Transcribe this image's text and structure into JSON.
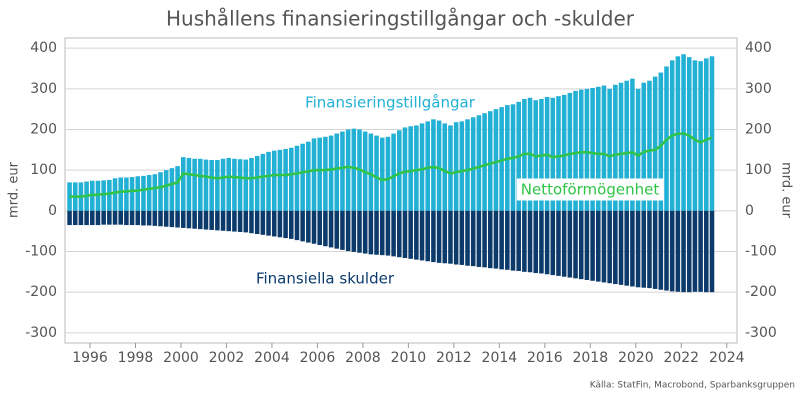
{
  "chart_data": {
    "type": "bar",
    "title": "Hushållens finansieringstillgångar och -skulder",
    "ylabel": "mrd. eur",
    "source": "Källa: StatFin, Macrobond, Sparbanksgruppen",
    "annotations": [
      "Finansieringstillgångar",
      "Nettoförmögenhet",
      "Finansiella skulder"
    ],
    "xlim": [
      1994.9,
      2024.45
    ],
    "xticks": [
      1996,
      1998,
      2000,
      2002,
      2004,
      2006,
      2008,
      2010,
      2012,
      2014,
      2016,
      2018,
      2020,
      2022,
      2024
    ],
    "ylim": [
      -325,
      425
    ],
    "yticks": [
      {
        "value": -300,
        "label": "-300"
      },
      {
        "value": -200,
        "label": "-200"
      },
      {
        "value": -100,
        "label": "-100"
      },
      0,
      100,
      200,
      300,
      400
    ],
    "grid": true,
    "x": [
      1995,
      1995.25,
      1995.5,
      1995.75,
      1996,
      1996.25,
      1996.5,
      1996.75,
      1997,
      1997.25,
      1997.5,
      1997.75,
      1998,
      1998.25,
      1998.5,
      1998.75,
      1999,
      1999.25,
      1999.5,
      1999.75,
      2000,
      2000.25,
      2000.5,
      2000.75,
      2001,
      2001.25,
      2001.5,
      2001.75,
      2002,
      2002.25,
      2002.5,
      2002.75,
      2003,
      2003.25,
      2003.5,
      2003.75,
      2004,
      2004.25,
      2004.5,
      2004.75,
      2005,
      2005.25,
      2005.5,
      2005.75,
      2006,
      2006.25,
      2006.5,
      2006.75,
      2007,
      2007.25,
      2007.5,
      2007.75,
      2008,
      2008.25,
      2008.5,
      2008.75,
      2009,
      2009.25,
      2009.5,
      2009.75,
      2010,
      2010.25,
      2010.5,
      2010.75,
      2011,
      2011.25,
      2011.5,
      2011.75,
      2012,
      2012.25,
      2012.5,
      2012.75,
      2013,
      2013.25,
      2013.5,
      2013.75,
      2014,
      2014.25,
      2014.5,
      2014.75,
      2015,
      2015.25,
      2015.5,
      2015.75,
      2016,
      2016.25,
      2016.5,
      2016.75,
      2017,
      2017.25,
      2017.5,
      2017.75,
      2018,
      2018.25,
      2018.5,
      2018.75,
      2019,
      2019.25,
      2019.5,
      2019.75,
      2020,
      2020.25,
      2020.5,
      2020.75,
      2021,
      2021.25,
      2021.5,
      2021.75,
      2022,
      2022.25,
      2022.5,
      2022.75,
      2023,
      2023.25
    ],
    "series": [
      {
        "name": "Finansieringstillgångar",
        "color": "#22b0d4",
        "kind": "bar",
        "values": [
          70,
          70,
          70,
          72,
          74,
          74,
          75,
          76,
          80,
          82,
          82,
          83,
          85,
          86,
          88,
          90,
          95,
          100,
          105,
          110,
          132,
          130,
          128,
          128,
          126,
          125,
          125,
          128,
          130,
          128,
          127,
          126,
          130,
          135,
          140,
          145,
          148,
          150,
          152,
          155,
          160,
          165,
          170,
          178,
          180,
          182,
          185,
          190,
          195,
          200,
          202,
          200,
          195,
          190,
          185,
          180,
          182,
          190,
          198,
          205,
          208,
          210,
          215,
          220,
          225,
          222,
          215,
          210,
          218,
          220,
          225,
          230,
          235,
          240,
          245,
          250,
          255,
          260,
          262,
          268,
          275,
          278,
          272,
          275,
          280,
          278,
          282,
          285,
          290,
          295,
          298,
          300,
          302,
          305,
          308,
          300,
          310,
          315,
          320,
          325,
          300,
          315,
          320,
          330,
          340,
          355,
          370,
          380,
          385,
          378,
          370,
          368,
          375,
          380
        ]
      },
      {
        "name": "Finansiella skulder",
        "color": "#0b3a6b",
        "kind": "bar",
        "values": [
          -35,
          -35,
          -35,
          -35,
          -35,
          -35,
          -34,
          -34,
          -34,
          -34,
          -35,
          -35,
          -35,
          -36,
          -36,
          -37,
          -38,
          -39,
          -40,
          -41,
          -42,
          -43,
          -44,
          -45,
          -46,
          -47,
          -48,
          -49,
          -50,
          -51,
          -52,
          -53,
          -55,
          -57,
          -59,
          -61,
          -63,
          -65,
          -67,
          -69,
          -72,
          -75,
          -78,
          -81,
          -84,
          -87,
          -90,
          -93,
          -96,
          -99,
          -101,
          -103,
          -105,
          -107,
          -108,
          -109,
          -110,
          -112,
          -114,
          -116,
          -118,
          -120,
          -122,
          -124,
          -126,
          -128,
          -129,
          -130,
          -132,
          -133,
          -135,
          -136,
          -138,
          -139,
          -141,
          -142,
          -144,
          -145,
          -147,
          -148,
          -150,
          -151,
          -153,
          -154,
          -156,
          -158,
          -160,
          -162,
          -164,
          -166,
          -168,
          -170,
          -172,
          -174,
          -176,
          -178,
          -180,
          -182,
          -184,
          -186,
          -188,
          -189,
          -190,
          -192,
          -194,
          -196,
          -198,
          -199,
          -200,
          -200,
          -199,
          -199,
          -200,
          -200
        ]
      },
      {
        "name": "Nettoförmögenhet",
        "color": "#2fc447",
        "kind": "line",
        "values": [
          35,
          35,
          35,
          37,
          39,
          40,
          41,
          42,
          45,
          47,
          48,
          49,
          50,
          52,
          54,
          56,
          58,
          62,
          66,
          70,
          92,
          90,
          88,
          86,
          84,
          82,
          80,
          82,
          84,
          83,
          82,
          80,
          80,
          82,
          84,
          86,
          88,
          88,
          88,
          90,
          92,
          95,
          97,
          100,
          100,
          100,
          102,
          104,
          106,
          108,
          106,
          102,
          95,
          90,
          82,
          76,
          78,
          85,
          92,
          96,
          98,
          100,
          102,
          106,
          108,
          105,
          98,
          92,
          95,
          98,
          100,
          104,
          108,
          112,
          116,
          120,
          124,
          128,
          130,
          134,
          140,
          140,
          134,
          136,
          138,
          132,
          134,
          136,
          140,
          142,
          144,
          144,
          142,
          140,
          140,
          134,
          138,
          140,
          142,
          144,
          136,
          145,
          148,
          150,
          160,
          175,
          185,
          190,
          190,
          185,
          175,
          168,
          175,
          180
        ]
      }
    ]
  }
}
